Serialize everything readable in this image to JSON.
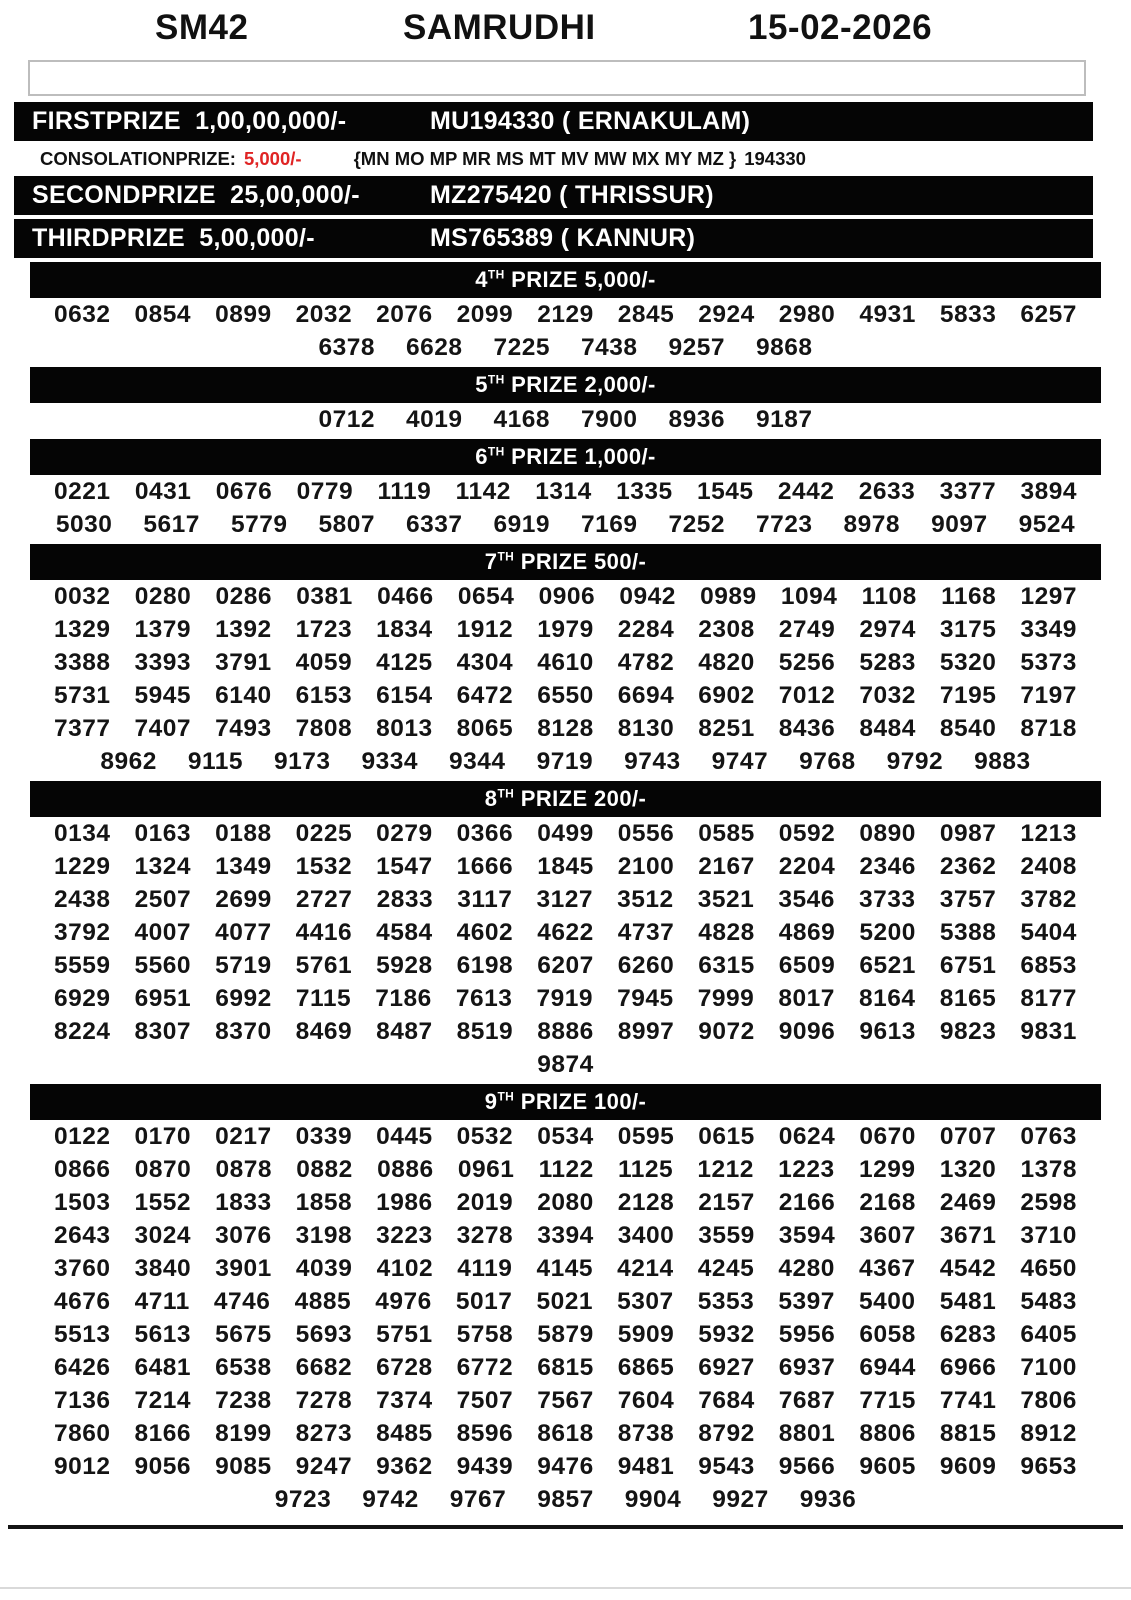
{
  "header": {
    "draw_code": "SM42",
    "lottery_name": "SAMRUDHI",
    "draw_date": "15-02-2026"
  },
  "first_prize": {
    "label": "FIRSTPRIZE",
    "amount": "1,00,00,000/-",
    "winner": "MU194330 ( ERNAKULAM)"
  },
  "consolation": {
    "label": "CONSOLATIONPRIZE:",
    "amount": "5,000/-",
    "series": "{MN MO MP MR MS MT MV MW MX MY MZ }",
    "number": "194330",
    "amount_color": "#e02424"
  },
  "second_prize": {
    "label": "SECONDPRIZE",
    "amount": "25,00,000/-",
    "winner": "MZ275420 ( THRISSUR)"
  },
  "third_prize": {
    "label": "THIRDPRIZE",
    "amount": "5,00,000/-",
    "winner": "MS765389 ( KANNUR)"
  },
  "colors": {
    "bar_background": "#000000",
    "consolation_amount_red": "#e02424"
  },
  "sections": [
    {
      "rank": "4",
      "ordinal": "TH",
      "title": "PRIZE 5,000/-",
      "rows": [
        [
          "0632",
          "0854",
          "0899",
          "2032",
          "2076",
          "2099",
          "2129",
          "2845",
          "2924",
          "2980",
          "4931",
          "5833",
          "6257"
        ],
        [
          "6378",
          "6628",
          "7225",
          "7438",
          "9257",
          "9868"
        ]
      ]
    },
    {
      "rank": "5",
      "ordinal": "TH",
      "title": "PRIZE 2,000/-",
      "rows": [
        [
          "0712",
          "4019",
          "4168",
          "7900",
          "8936",
          "9187"
        ]
      ]
    },
    {
      "rank": "6",
      "ordinal": "TH",
      "title": "PRIZE 1,000/-",
      "rows": [
        [
          "0221",
          "0431",
          "0676",
          "0779",
          "1119",
          "1142",
          "1314",
          "1335",
          "1545",
          "2442",
          "2633",
          "3377",
          "3894"
        ],
        [
          "5030",
          "5617",
          "5779",
          "5807",
          "6337",
          "6919",
          "7169",
          "7252",
          "7723",
          "8978",
          "9097",
          "9524"
        ]
      ]
    },
    {
      "rank": "7",
      "ordinal": "TH",
      "title": "PRIZE 500/-",
      "rows": [
        [
          "0032",
          "0280",
          "0286",
          "0381",
          "0466",
          "0654",
          "0906",
          "0942",
          "0989",
          "1094",
          "1108",
          "1168",
          "1297"
        ],
        [
          "1329",
          "1379",
          "1392",
          "1723",
          "1834",
          "1912",
          "1979",
          "2284",
          "2308",
          "2749",
          "2974",
          "3175",
          "3349"
        ],
        [
          "3388",
          "3393",
          "3791",
          "4059",
          "4125",
          "4304",
          "4610",
          "4782",
          "4820",
          "5256",
          "5283",
          "5320",
          "5373"
        ],
        [
          "5731",
          "5945",
          "6140",
          "6153",
          "6154",
          "6472",
          "6550",
          "6694",
          "6902",
          "7012",
          "7032",
          "7195",
          "7197"
        ],
        [
          "7377",
          "7407",
          "7493",
          "7808",
          "8013",
          "8065",
          "8128",
          "8130",
          "8251",
          "8436",
          "8484",
          "8540",
          "8718"
        ],
        [
          "8962",
          "9115",
          "9173",
          "9334",
          "9344",
          "9719",
          "9743",
          "9747",
          "9768",
          "9792",
          "9883"
        ]
      ]
    },
    {
      "rank": "8",
      "ordinal": "TH",
      "title": "PRIZE 200/-",
      "rows": [
        [
          "0134",
          "0163",
          "0188",
          "0225",
          "0279",
          "0366",
          "0499",
          "0556",
          "0585",
          "0592",
          "0890",
          "0987",
          "1213"
        ],
        [
          "1229",
          "1324",
          "1349",
          "1532",
          "1547",
          "1666",
          "1845",
          "2100",
          "2167",
          "2204",
          "2346",
          "2362",
          "2408"
        ],
        [
          "2438",
          "2507",
          "2699",
          "2727",
          "2833",
          "3117",
          "3127",
          "3512",
          "3521",
          "3546",
          "3733",
          "3757",
          "3782"
        ],
        [
          "3792",
          "4007",
          "4077",
          "4416",
          "4584",
          "4602",
          "4622",
          "4737",
          "4828",
          "4869",
          "5200",
          "5388",
          "5404"
        ],
        [
          "5559",
          "5560",
          "5719",
          "5761",
          "5928",
          "6198",
          "6207",
          "6260",
          "6315",
          "6509",
          "6521",
          "6751",
          "6853"
        ],
        [
          "6929",
          "6951",
          "6992",
          "7115",
          "7186",
          "7613",
          "7919",
          "7945",
          "7999",
          "8017",
          "8164",
          "8165",
          "8177"
        ],
        [
          "8224",
          "8307",
          "8370",
          "8469",
          "8487",
          "8519",
          "8886",
          "8997",
          "9072",
          "9096",
          "9613",
          "9823",
          "9831"
        ],
        [
          "9874"
        ]
      ]
    },
    {
      "rank": "9",
      "ordinal": "TH",
      "title": "PRIZE 100/-",
      "rows": [
        [
          "0122",
          "0170",
          "0217",
          "0339",
          "0445",
          "0532",
          "0534",
          "0595",
          "0615",
          "0624",
          "0670",
          "0707",
          "0763"
        ],
        [
          "0866",
          "0870",
          "0878",
          "0882",
          "0886",
          "0961",
          "1122",
          "1125",
          "1212",
          "1223",
          "1299",
          "1320",
          "1378"
        ],
        [
          "1503",
          "1552",
          "1833",
          "1858",
          "1986",
          "2019",
          "2080",
          "2128",
          "2157",
          "2166",
          "2168",
          "2469",
          "2598"
        ],
        [
          "2643",
          "3024",
          "3076",
          "3198",
          "3223",
          "3278",
          "3394",
          "3400",
          "3559",
          "3594",
          "3607",
          "3671",
          "3710"
        ],
        [
          "3760",
          "3840",
          "3901",
          "4039",
          "4102",
          "4119",
          "4145",
          "4214",
          "4245",
          "4280",
          "4367",
          "4542",
          "4650"
        ],
        [
          "4676",
          "4711",
          "4746",
          "4885",
          "4976",
          "5017",
          "5021",
          "5307",
          "5353",
          "5397",
          "5400",
          "5481",
          "5483"
        ],
        [
          "5513",
          "5613",
          "5675",
          "5693",
          "5751",
          "5758",
          "5879",
          "5909",
          "5932",
          "5956",
          "6058",
          "6283",
          "6405"
        ],
        [
          "6426",
          "6481",
          "6538",
          "6682",
          "6728",
          "6772",
          "6815",
          "6865",
          "6927",
          "6937",
          "6944",
          "6966",
          "7100"
        ],
        [
          "7136",
          "7214",
          "7238",
          "7278",
          "7374",
          "7507",
          "7567",
          "7604",
          "7684",
          "7687",
          "7715",
          "7741",
          "7806"
        ],
        [
          "7860",
          "8166",
          "8199",
          "8273",
          "8485",
          "8596",
          "8618",
          "8738",
          "8792",
          "8801",
          "8806",
          "8815",
          "8912"
        ],
        [
          "9012",
          "9056",
          "9085",
          "9247",
          "9362",
          "9439",
          "9476",
          "9481",
          "9543",
          "9566",
          "9605",
          "9609",
          "9653"
        ],
        [
          "9723",
          "9742",
          "9767",
          "9857",
          "9904",
          "9927",
          "9936"
        ]
      ]
    }
  ]
}
